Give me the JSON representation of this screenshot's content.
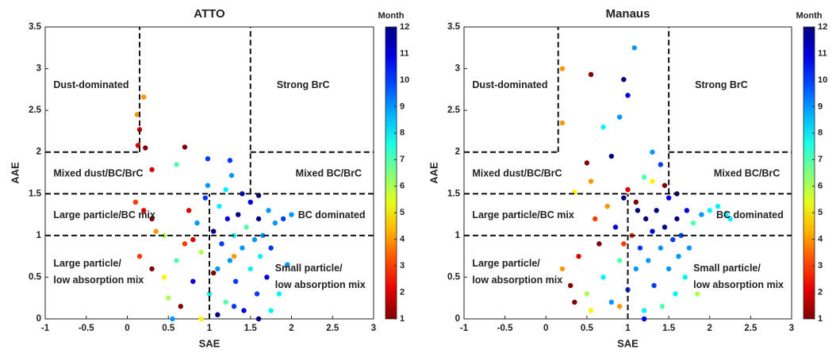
{
  "chart_data": [
    {
      "type": "scatter",
      "title": "ATTO",
      "x_label": "SAE",
      "y_label": "AAE",
      "colorbar_label": "Month",
      "xlim": [
        -1,
        3
      ],
      "xticks": [
        -1,
        -0.5,
        0,
        0.5,
        1,
        1.5,
        2,
        2.5,
        3
      ],
      "ylim": [
        0,
        3.5
      ],
      "yticks": [
        0,
        0.5,
        1,
        1.5,
        2,
        2.5,
        3,
        3.5
      ],
      "clim": [
        1,
        12
      ],
      "cticks": [
        1,
        2,
        3,
        4,
        5,
        6,
        7,
        8,
        9,
        10,
        11,
        12
      ],
      "colormap": "jet-reversed",
      "reference_lines": [
        {
          "x": [
            0.15,
            0.15
          ],
          "y": [
            2,
            3.5
          ]
        },
        {
          "x": [
            -1,
            0.15
          ],
          "y": [
            2,
            2
          ]
        },
        {
          "x": [
            1.5,
            1.5
          ],
          "y": [
            1.5,
            3.5
          ]
        },
        {
          "x": [
            1.5,
            3
          ],
          "y": [
            2,
            2
          ]
        },
        {
          "x": [
            -1,
            3
          ],
          "y": [
            1.5,
            1.5
          ]
        },
        {
          "x": [
            -1,
            3
          ],
          "y": [
            1,
            1
          ]
        },
        {
          "x": [
            1,
            1
          ],
          "y": [
            0,
            1.5
          ]
        }
      ],
      "annotations": [
        "Dust-dominated",
        "Strong BrC",
        "Mixed dust/BC/BrC",
        "Mixed BC/BrC",
        "Large particle/BC mix",
        "BC dominated",
        "Large particle/",
        "low absorption mix",
        "Small particle/",
        "low absorption mix"
      ],
      "x": [
        0.12,
        0.2,
        0.15,
        0.13,
        0.22,
        0.3,
        0.7,
        0.6,
        0.98,
        1.25,
        1.27,
        0.1,
        0.2,
        0.3,
        0.35,
        0.45,
        0.15,
        0.3,
        0.45,
        0.5,
        0.55,
        0.65,
        0.6,
        0.7,
        0.75,
        0.8,
        0.85,
        0.9,
        0.95,
        1.0,
        1.05,
        1.1,
        1.12,
        1.15,
        1.2,
        1.22,
        1.25,
        1.3,
        1.32,
        1.35,
        1.4,
        1.42,
        1.45,
        1.5,
        1.5,
        1.55,
        1.58,
        1.6,
        1.62,
        1.65,
        1.7,
        1.72,
        1.75,
        1.8,
        1.85,
        1.9,
        1.95,
        2.0,
        1.1,
        1.3,
        0.9,
        1.4,
        1.6,
        0.98,
        1.2,
        1.05,
        0.8,
        1.3,
        1.6,
        1.75
      ],
      "values": [
        2.45,
        2.66,
        2.27,
        2.08,
        2.05,
        1.79,
        2.06,
        1.85,
        1.92,
        1.9,
        1.72,
        1.4,
        1.3,
        1.2,
        1.05,
        1.0,
        0.75,
        0.6,
        0.5,
        0.25,
        0.0,
        0.15,
        0.7,
        0.9,
        1.3,
        0.45,
        1.15,
        0.8,
        1.45,
        0.3,
        1.05,
        0.6,
        1.35,
        0.9,
        0.2,
        1.2,
        0.7,
        1.0,
        0.45,
        1.25,
        0.85,
        0.1,
        1.1,
        0.6,
        1.4,
        0.95,
        0.3,
        1.2,
        0.75,
        1.0,
        0.5,
        1.3,
        0.85,
        1.15,
        0.3,
        1.2,
        0.65,
        1.25,
        0.05,
        0.15,
        0.0,
        1.5,
        1.48,
        1.6,
        1.55,
        0.55,
        0.95,
        0.75,
        0.0,
        0.1
      ],
      "month": [
        4,
        4,
        2,
        2,
        1,
        2,
        1,
        7,
        10,
        10,
        9,
        3,
        2,
        1,
        4,
        6,
        3,
        1,
        5,
        6,
        9,
        1,
        7,
        3,
        2,
        11,
        9,
        6,
        10,
        8,
        12,
        9,
        8,
        10,
        7,
        11,
        9,
        8,
        10,
        12,
        9,
        11,
        7,
        8,
        11,
        9,
        10,
        12,
        8,
        9,
        11,
        9,
        10,
        9,
        8,
        10,
        9,
        9,
        12,
        10,
        5,
        11,
        12,
        9,
        8,
        1,
        2,
        4,
        12,
        8
      ]
    },
    {
      "type": "scatter",
      "title": "Manaus",
      "x_label": "SAE",
      "y_label": "AAE",
      "colorbar_label": "Month",
      "xlim": [
        -1,
        3
      ],
      "xticks": [
        -1,
        -0.5,
        0,
        0.5,
        1,
        1.5,
        2,
        2.5,
        3
      ],
      "ylim": [
        0,
        3.5
      ],
      "yticks": [
        0,
        0.5,
        1,
        1.5,
        2,
        2.5,
        3,
        3.5
      ],
      "clim": [
        1,
        12
      ],
      "cticks": [
        1,
        2,
        3,
        4,
        5,
        6,
        7,
        8,
        9,
        10,
        11,
        12
      ],
      "colormap": "jet-reversed",
      "reference_lines": [
        {
          "x": [
            0.15,
            0.15
          ],
          "y": [
            2,
            3.5
          ]
        },
        {
          "x": [
            -1,
            0.15
          ],
          "y": [
            2,
            2
          ]
        },
        {
          "x": [
            1.5,
            1.5
          ],
          "y": [
            1.5,
            3.5
          ]
        },
        {
          "x": [
            1.5,
            3
          ],
          "y": [
            2,
            2
          ]
        },
        {
          "x": [
            -1,
            3
          ],
          "y": [
            1.5,
            1.5
          ]
        },
        {
          "x": [
            -1,
            3
          ],
          "y": [
            1,
            1
          ]
        },
        {
          "x": [
            1,
            1
          ],
          "y": [
            0,
            1.5
          ]
        }
      ],
      "annotations": [
        "Dust-dominated",
        "Strong BrC",
        "Mixed dust/BC/BrC",
        "Mixed BC/BrC",
        "Large particle/BC mix",
        "BC dominated",
        "Large particle/",
        "low absorption mix",
        "Small particle/",
        "low absorption mix"
      ],
      "x": [
        0.2,
        0.2,
        0.55,
        0.95,
        1.08,
        1.0,
        0.9,
        0.7,
        0.5,
        0.55,
        0.35,
        0.8,
        1.3,
        1.4,
        1.2,
        0.2,
        0.3,
        0.35,
        0.4,
        0.5,
        0.55,
        0.6,
        0.65,
        0.7,
        0.75,
        0.8,
        0.85,
        0.9,
        0.95,
        1.0,
        1.05,
        1.1,
        1.12,
        1.15,
        1.2,
        1.22,
        1.25,
        1.3,
        1.32,
        1.35,
        1.4,
        1.42,
        1.45,
        1.5,
        1.5,
        1.55,
        1.58,
        1.6,
        1.62,
        1.65,
        1.7,
        1.72,
        1.8,
        1.85,
        1.9,
        2.0,
        2.1,
        2.2,
        2.25,
        1.75,
        1.2,
        1.3,
        1.45,
        1.0,
        0.9,
        1.6,
        1.1,
        0.95
      ],
      "values": [
        3.0,
        2.35,
        2.93,
        2.87,
        3.25,
        2.68,
        2.42,
        2.3,
        1.87,
        1.65,
        1.52,
        1.95,
        2.0,
        1.85,
        1.7,
        0.6,
        0.4,
        0.2,
        0.75,
        0.3,
        0.1,
        1.2,
        0.9,
        0.5,
        1.35,
        0.2,
        1.1,
        0.7,
        1.45,
        0.35,
        1.0,
        0.6,
        1.3,
        0.85,
        0.1,
        1.2,
        0.7,
        1.05,
        0.4,
        1.3,
        0.85,
        0.15,
        1.1,
        0.6,
        1.45,
        0.95,
        0.3,
        1.2,
        0.75,
        1.0,
        0.5,
        1.3,
        1.15,
        0.3,
        1.25,
        1.3,
        1.35,
        1.25,
        1.2,
        0.85,
        0.0,
        1.65,
        1.6,
        1.55,
        0.15,
        1.5,
        1.4,
        0.9
      ],
      "month": [
        4,
        4,
        1,
        12,
        9,
        11,
        9,
        8,
        1,
        4,
        5,
        12,
        9,
        10,
        7,
        4,
        1,
        1,
        2,
        6,
        5,
        3,
        1,
        8,
        4,
        9,
        11,
        7,
        12,
        10,
        3,
        9,
        12,
        10,
        8,
        12,
        9,
        11,
        10,
        12,
        9,
        7,
        12,
        9,
        11,
        10,
        8,
        12,
        9,
        10,
        8,
        11,
        7,
        6,
        9,
        8,
        8,
        8,
        8,
        9,
        11,
        5,
        1,
        2,
        4,
        12,
        1,
        3
      ]
    }
  ]
}
